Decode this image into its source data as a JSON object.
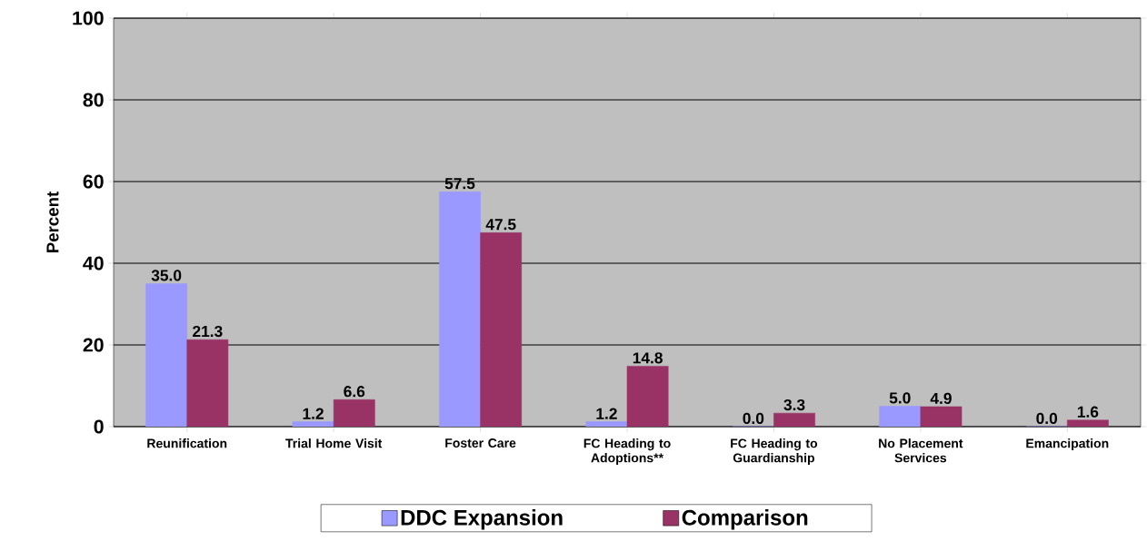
{
  "chart_data": {
    "type": "bar",
    "ylabel": "Percent",
    "categories": [
      "Reunification",
      "Trial Home Visit",
      "Foster Care",
      "FC Heading to Adoptions**",
      "FC Heading to Guardianship",
      "No Placement Services",
      "Emancipation"
    ],
    "series": [
      {
        "name": "DDC Expansion",
        "color": "#9999ff",
        "values": [
          35.0,
          1.2,
          57.5,
          1.2,
          0.0,
          5.0,
          0.0
        ],
        "value_labels": [
          "35.0",
          "1.2",
          "57.5",
          "1.2",
          "0.0",
          "5.0",
          "0.0"
        ]
      },
      {
        "name": "Comparison",
        "color": "#993366",
        "values": [
          21.3,
          6.6,
          47.5,
          14.8,
          3.3,
          4.9,
          1.6
        ],
        "value_labels": [
          "21.3",
          "6.6",
          "47.5",
          "14.8",
          "3.3",
          "4.9",
          "1.6"
        ]
      }
    ],
    "ylim": [
      0,
      100
    ],
    "yticks": [
      0,
      20,
      40,
      60,
      80,
      100
    ],
    "grid": "y",
    "legend": "bottom"
  }
}
